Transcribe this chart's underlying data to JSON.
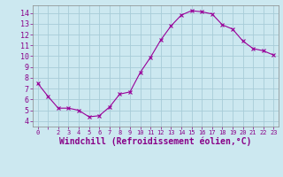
{
  "x": [
    0,
    1,
    2,
    3,
    4,
    5,
    6,
    7,
    8,
    9,
    10,
    11,
    12,
    13,
    14,
    15,
    16,
    17,
    18,
    19,
    20,
    21,
    22,
    23
  ],
  "y": [
    7.5,
    6.3,
    5.2,
    5.2,
    5.0,
    4.4,
    4.5,
    5.3,
    6.5,
    6.7,
    8.5,
    9.9,
    11.5,
    12.8,
    13.8,
    14.2,
    14.1,
    13.9,
    12.9,
    12.5,
    11.4,
    10.7,
    10.5,
    10.1
  ],
  "line_color": "#990099",
  "marker": "x",
  "marker_size": 3,
  "marker_linewidth": 0.8,
  "line_width": 0.8,
  "xlabel": "Windchill (Refroidissement éolien,°C)",
  "xlabel_fontsize": 7,
  "ytick_labels": [
    "4",
    "5",
    "6",
    "7",
    "8",
    "9",
    "10",
    "11",
    "12",
    "13",
    "14"
  ],
  "ytick_vals": [
    4,
    5,
    6,
    7,
    8,
    9,
    10,
    11,
    12,
    13,
    14
  ],
  "xtick_labels": [
    "0",
    "",
    "2",
    "3",
    "4",
    "5",
    "6",
    "7",
    "8",
    "9",
    "10",
    "11",
    "12",
    "13",
    "14",
    "15",
    "16",
    "17",
    "18",
    "19",
    "20",
    "21",
    "22",
    "23"
  ],
  "ylim": [
    3.5,
    14.7
  ],
  "xlim": [
    -0.5,
    23.5
  ],
  "bg_color": "#cce8f0",
  "grid_color": "#a8ccd8",
  "text_color": "#880088"
}
